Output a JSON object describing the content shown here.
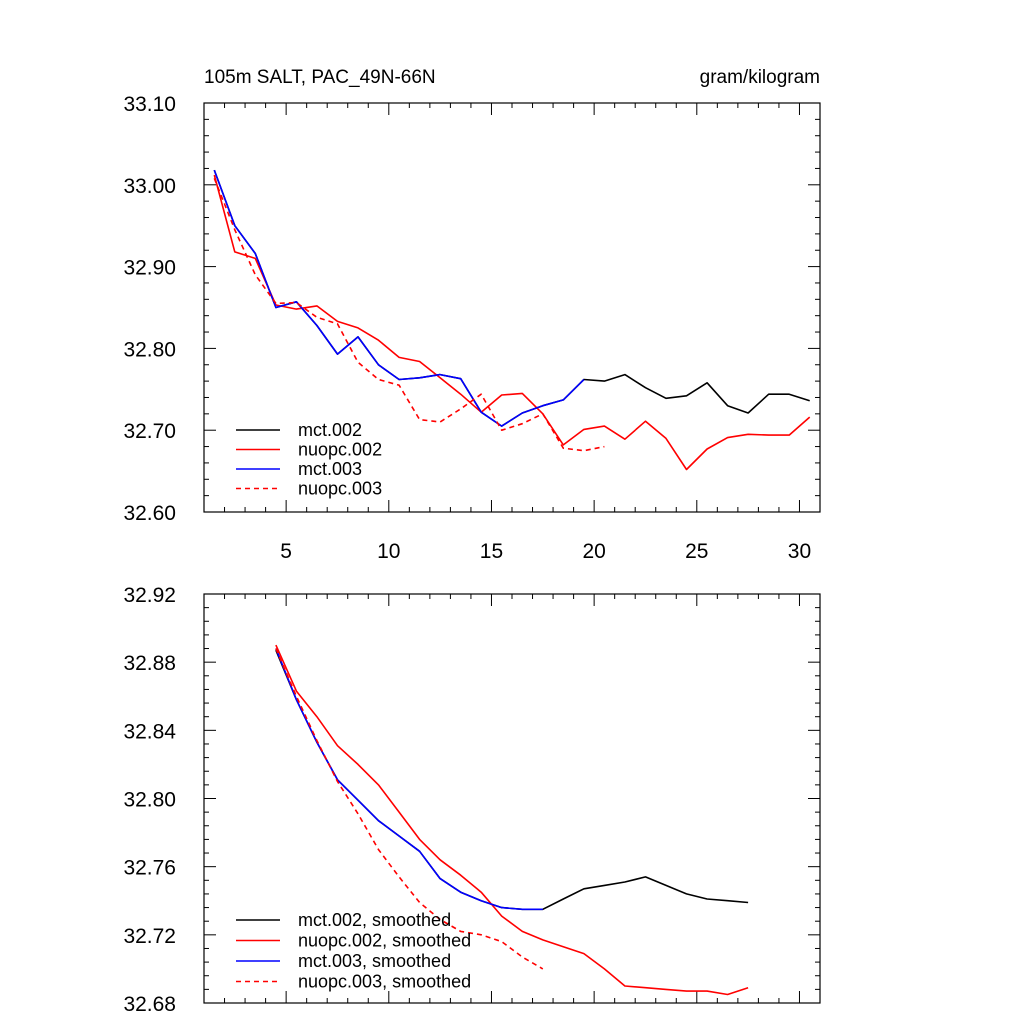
{
  "chart_data": [
    {
      "type": "line",
      "title_left": "105m SALT, PAC_49N-66N",
      "title_right": "gram/kilogram",
      "xlim": [
        1,
        31
      ],
      "ylim": [
        32.6,
        33.1
      ],
      "xticks": [
        5,
        10,
        15,
        20,
        25,
        30
      ],
      "yticks": [
        32.6,
        32.7,
        32.8,
        32.9,
        33.0,
        33.1
      ],
      "ytick_labels": [
        "32.60",
        "32.70",
        "32.80",
        "32.90",
        "33.00",
        "33.10"
      ],
      "legend": "bottom-left",
      "series": [
        {
          "name": "mct.002",
          "color": "#000000",
          "dash": false,
          "x": [
            1.5,
            2.5,
            3.5,
            4.5,
            5.5,
            6.5,
            7.5,
            8.5,
            9.5,
            10.5,
            11.5,
            12.5,
            13.5,
            14.5,
            15.5,
            16.5,
            17.5,
            18.5,
            19.5,
            20.5,
            21.5,
            22.5,
            23.5,
            24.5,
            25.5,
            26.5,
            27.5,
            28.5,
            29.5,
            30.5
          ],
          "y": [
            33.018,
            32.95,
            32.916,
            32.85,
            32.857,
            32.828,
            32.793,
            32.814,
            32.78,
            32.762,
            32.764,
            32.768,
            32.763,
            32.722,
            32.705,
            32.721,
            32.73,
            32.737,
            32.762,
            32.76,
            32.768,
            32.752,
            32.739,
            32.742,
            32.758,
            32.73,
            32.721,
            32.744,
            32.744,
            32.736
          ]
        },
        {
          "name": "nuopc.002",
          "color": "#ff0000",
          "dash": false,
          "x": [
            1.5,
            2.5,
            3.5,
            4.5,
            5.5,
            6.5,
            7.5,
            8.5,
            9.5,
            10.5,
            11.5,
            12.5,
            13.5,
            14.5,
            15.5,
            16.5,
            17.5,
            18.5,
            19.5,
            20.5,
            21.5,
            22.5,
            23.5,
            24.5,
            25.5,
            26.5,
            27.5,
            28.5,
            29.5,
            30.5
          ],
          "y": [
            33.012,
            32.918,
            32.91,
            32.853,
            32.848,
            32.852,
            32.833,
            32.825,
            32.81,
            32.789,
            32.784,
            32.764,
            32.744,
            32.722,
            32.743,
            32.745,
            32.72,
            32.682,
            32.701,
            32.705,
            32.689,
            32.711,
            32.69,
            32.652,
            32.677,
            32.691,
            32.695,
            32.694,
            32.694,
            32.716
          ]
        },
        {
          "name": "mct.003",
          "color": "#0000ff",
          "dash": false,
          "x": [
            1.5,
            2.5,
            3.5,
            4.5,
            5.5,
            6.5,
            7.5,
            8.5,
            9.5,
            10.5,
            11.5,
            12.5,
            13.5,
            14.5,
            15.5,
            16.5,
            17.5,
            18.5,
            19.5
          ],
          "y": [
            33.018,
            32.95,
            32.916,
            32.85,
            32.857,
            32.828,
            32.793,
            32.814,
            32.78,
            32.762,
            32.764,
            32.768,
            32.763,
            32.722,
            32.705,
            32.721,
            32.73,
            32.737,
            32.762
          ]
        },
        {
          "name": "nuopc.003",
          "color": "#ff0000",
          "dash": true,
          "x": [
            1.5,
            2.5,
            3.5,
            4.5,
            5.5,
            6.5,
            7.5,
            8.5,
            9.5,
            10.5,
            11.5,
            12.5,
            13.5,
            14.5,
            15.5,
            16.5,
            17.5,
            18.5,
            19.5,
            20.5
          ],
          "y": [
            33.008,
            32.945,
            32.89,
            32.855,
            32.856,
            32.838,
            32.83,
            32.783,
            32.762,
            32.755,
            32.713,
            32.71,
            32.726,
            32.744,
            32.7,
            32.708,
            32.72,
            32.678,
            32.675,
            32.68
          ]
        }
      ]
    },
    {
      "type": "line",
      "xlim": [
        1,
        31
      ],
      "ylim": [
        32.68,
        32.92
      ],
      "xticks": [
        5,
        10,
        15,
        20,
        25,
        30
      ],
      "yticks": [
        32.68,
        32.72,
        32.76,
        32.8,
        32.84,
        32.88,
        32.92
      ],
      "ytick_labels": [
        "32.68",
        "32.72",
        "32.76",
        "32.80",
        "32.84",
        "32.88",
        "32.92"
      ],
      "legend": "bottom-left",
      "series": [
        {
          "name": "mct.002, smoothed",
          "color": "#000000",
          "dash": false,
          "x": [
            4.5,
            5.5,
            6.5,
            7.5,
            8.5,
            9.5,
            10.5,
            11.5,
            12.5,
            13.5,
            14.5,
            15.5,
            16.5,
            17.5,
            18.5,
            19.5,
            20.5,
            21.5,
            22.5,
            23.5,
            24.5,
            25.5,
            26.5,
            27.5
          ],
          "y": [
            32.887,
            32.858,
            32.833,
            32.811,
            32.799,
            32.787,
            32.778,
            32.769,
            32.753,
            32.745,
            32.74,
            32.736,
            32.735,
            32.735,
            32.741,
            32.747,
            32.749,
            32.751,
            32.754,
            32.749,
            32.744,
            32.741,
            32.74,
            32.739
          ]
        },
        {
          "name": "nuopc.002, smoothed",
          "color": "#ff0000",
          "dash": false,
          "x": [
            4.5,
            5.5,
            6.5,
            7.5,
            8.5,
            9.5,
            10.5,
            11.5,
            12.5,
            13.5,
            14.5,
            15.5,
            16.5,
            17.5,
            18.5,
            19.5,
            20.5,
            21.5,
            22.5,
            23.5,
            24.5,
            25.5,
            26.5,
            27.5
          ],
          "y": [
            32.89,
            32.863,
            32.848,
            32.831,
            32.82,
            32.808,
            32.792,
            32.776,
            32.764,
            32.755,
            32.745,
            32.731,
            32.722,
            32.717,
            32.713,
            32.709,
            32.7,
            32.69,
            32.689,
            32.688,
            32.687,
            32.687,
            32.685,
            32.689
          ]
        },
        {
          "name": "mct.003, smoothed",
          "color": "#0000ff",
          "dash": false,
          "x": [
            4.5,
            5.5,
            6.5,
            7.5,
            8.5,
            9.5,
            10.5,
            11.5,
            12.5,
            13.5,
            14.5,
            15.5,
            16.5,
            17.5
          ],
          "y": [
            32.888,
            32.858,
            32.833,
            32.811,
            32.799,
            32.787,
            32.778,
            32.769,
            32.753,
            32.745,
            32.74,
            32.736,
            32.735,
            32.735
          ]
        },
        {
          "name": "nuopc.003, smoothed",
          "color": "#ff0000",
          "dash": true,
          "x": [
            4.5,
            5.5,
            6.5,
            7.5,
            8.5,
            9.5,
            10.5,
            11.5,
            12.5,
            13.5,
            14.5,
            15.5,
            16.5,
            17.5
          ],
          "y": [
            32.888,
            32.86,
            32.834,
            32.81,
            32.791,
            32.77,
            32.754,
            32.739,
            32.729,
            32.722,
            32.72,
            32.716,
            32.707,
            32.7
          ]
        }
      ]
    }
  ]
}
